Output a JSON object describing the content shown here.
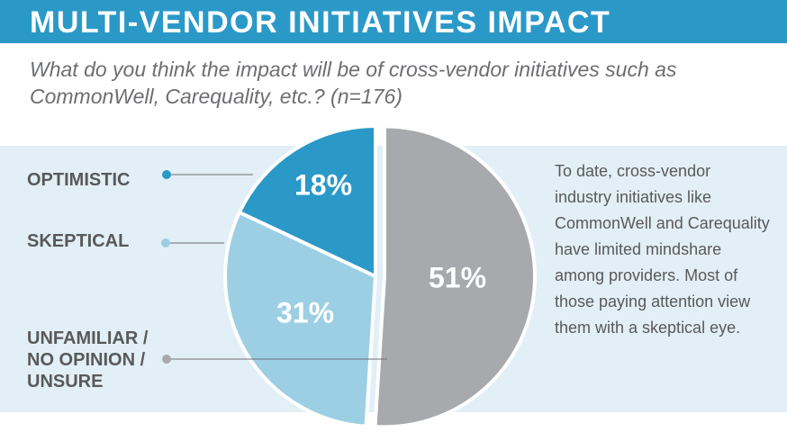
{
  "header": {
    "title": "MULTI-VENDOR INITIATIVES IMPACT",
    "subtitle": "What do you think the impact will be of cross-vendor initiatives such as CommonWell, Carequality, etc.? (n=176)"
  },
  "side_note": "To date, cross-vendor industry initiatives like CommonWell and Carequality have limited mindshare among providers. Most of those paying attention view them with a skeptical eye.",
  "colors": {
    "title_bar": "#2a99c8",
    "panel": "#e3eff6",
    "optimistic": "#2a99c8",
    "skeptical": "#9ccfe4",
    "unfamiliar": "#a7a9ac",
    "connector": "#6d6e71"
  },
  "chart_data": {
    "type": "pie",
    "slices": [
      {
        "category": "OPTIMISTIC",
        "value": 18,
        "label": "18%",
        "color": "#2a99c8",
        "exploded": false
      },
      {
        "category": "SKEPTICAL",
        "value": 31,
        "label": "31%",
        "color": "#9ccfe4",
        "exploded": false
      },
      {
        "category": "UNFAMILIAR / NO OPINION / UNSURE",
        "value": 51,
        "label": "51%",
        "color": "#a7a9ac",
        "exploded": true
      }
    ],
    "legend_placement": "left",
    "legend_lines": {
      "optimistic": "OPTIMISTIC",
      "skeptical": "SKEPTICAL",
      "unfamiliar_1": "UNFAMILIAR /",
      "unfamiliar_2": "NO OPINION /",
      "unfamiliar_3": "UNSURE"
    }
  }
}
